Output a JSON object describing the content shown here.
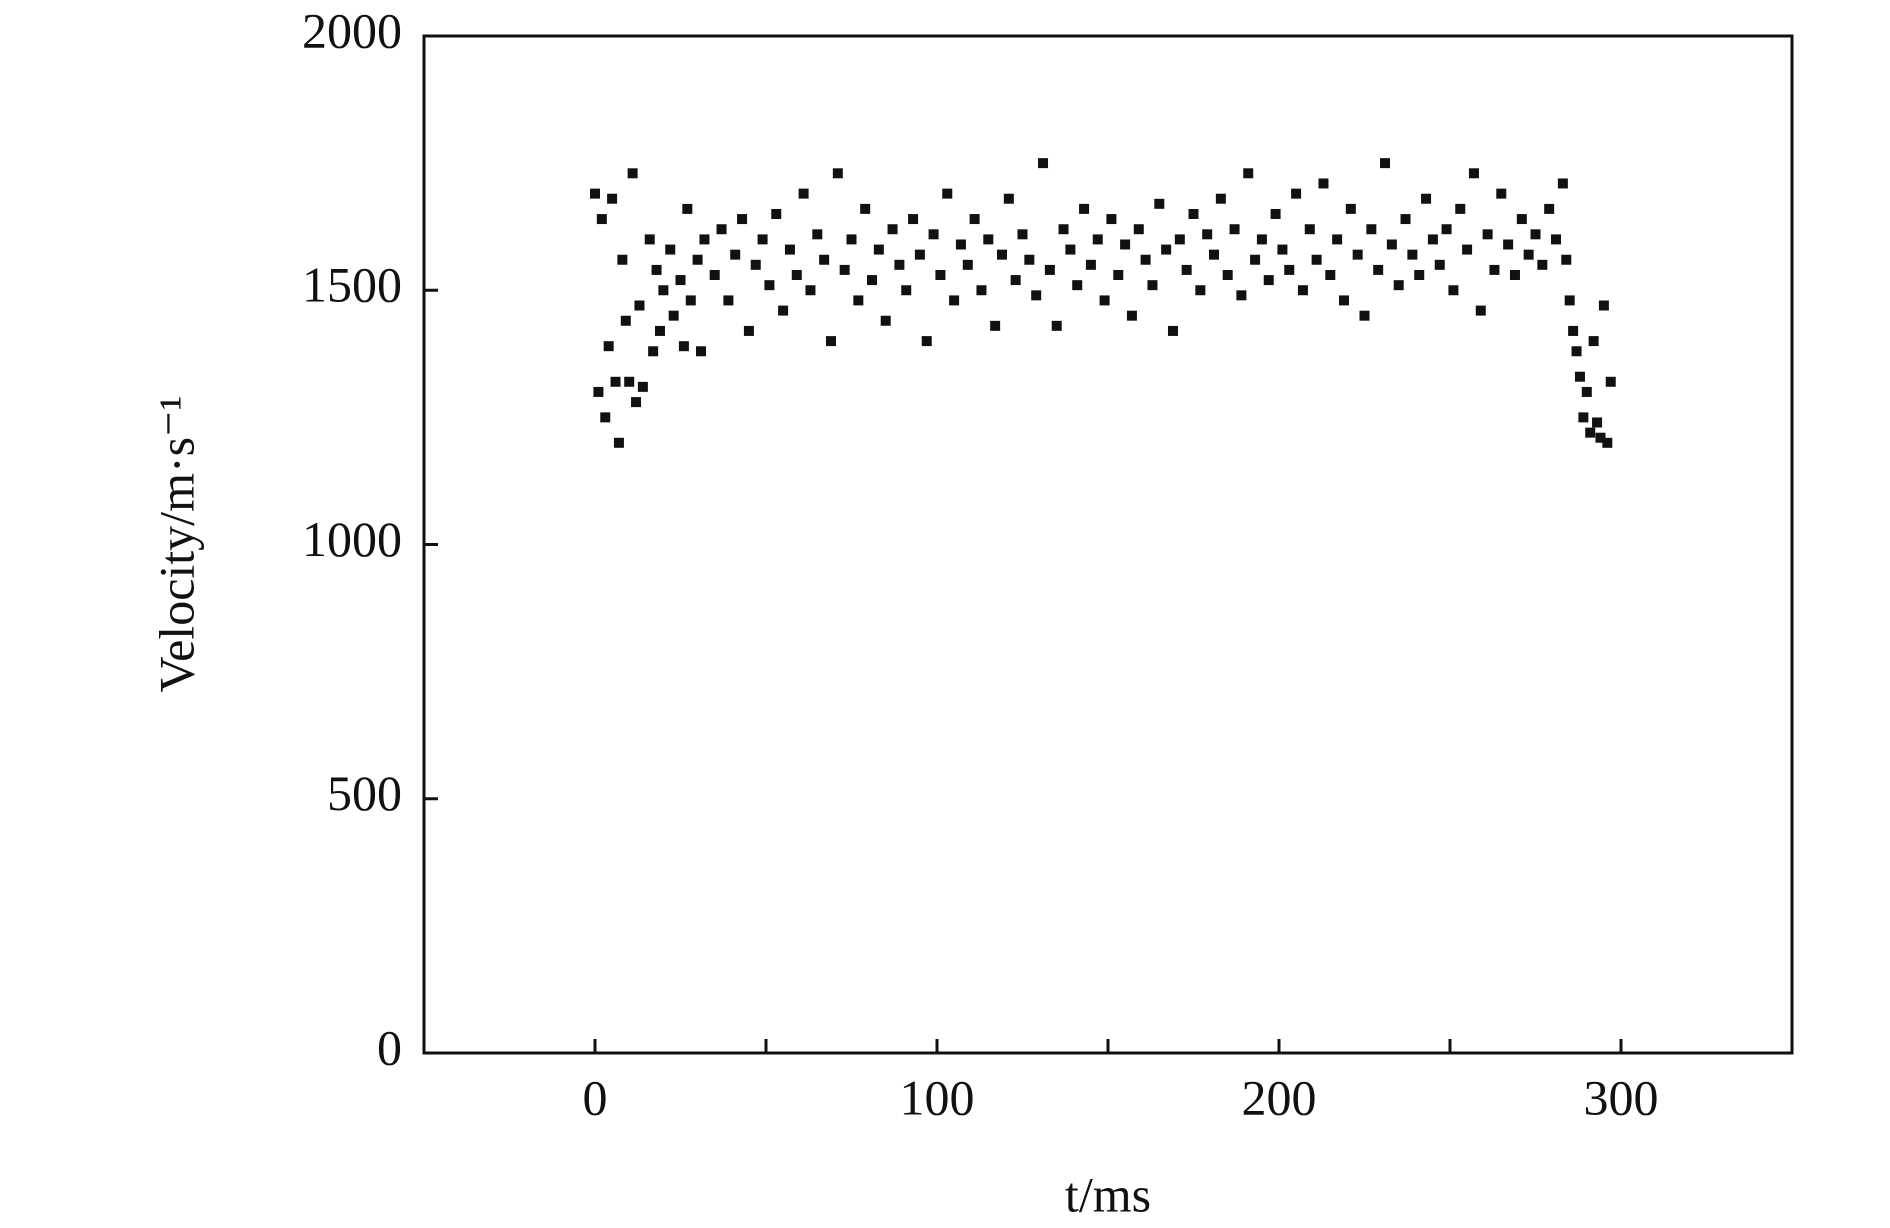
{
  "chart_data": {
    "type": "scatter",
    "x_label": "t/ms",
    "y_label": "Velocity/m·s⁻¹",
    "xlim": [
      -50,
      350
    ],
    "xticks": [
      0,
      100,
      200,
      300
    ],
    "xminorticks": [
      50,
      150,
      250
    ],
    "ylim": [
      0,
      2000
    ],
    "yticks": [
      0,
      500,
      1000,
      1500,
      2000
    ],
    "color": "#111111",
    "marker": "square",
    "x": [
      0,
      1,
      2,
      3,
      4,
      5,
      6,
      7,
      8,
      9,
      10,
      11,
      12,
      13,
      14,
      16,
      17,
      18,
      19,
      20,
      22,
      23,
      25,
      26,
      27,
      28,
      30,
      31,
      32,
      35,
      37,
      39,
      41,
      43,
      45,
      47,
      49,
      51,
      53,
      55,
      57,
      59,
      61,
      63,
      65,
      67,
      69,
      71,
      73,
      75,
      77,
      79,
      81,
      83,
      85,
      87,
      89,
      91,
      93,
      95,
      97,
      99,
      101,
      103,
      105,
      107,
      109,
      111,
      113,
      115,
      117,
      119,
      121,
      123,
      125,
      127,
      129,
      131,
      133,
      135,
      137,
      139,
      141,
      143,
      145,
      147,
      149,
      151,
      153,
      155,
      157,
      159,
      161,
      163,
      165,
      167,
      169,
      171,
      173,
      175,
      177,
      179,
      181,
      183,
      185,
      187,
      189,
      191,
      193,
      195,
      197,
      199,
      201,
      203,
      205,
      207,
      209,
      211,
      213,
      215,
      217,
      219,
      221,
      223,
      225,
      227,
      229,
      231,
      233,
      235,
      237,
      239,
      241,
      243,
      245,
      247,
      249,
      251,
      253,
      255,
      257,
      259,
      261,
      263,
      265,
      267,
      269,
      271,
      273,
      275,
      277,
      279,
      281,
      283,
      284,
      285,
      286,
      287,
      288,
      289,
      290,
      291,
      292,
      293,
      294,
      295,
      296,
      297
    ],
    "values": [
      1690,
      1300,
      1640,
      1250,
      1390,
      1680,
      1320,
      1200,
      1560,
      1440,
      1320,
      1730,
      1280,
      1470,
      1310,
      1600,
      1380,
      1540,
      1420,
      1500,
      1580,
      1450,
      1520,
      1390,
      1660,
      1480,
      1560,
      1380,
      1600,
      1530,
      1620,
      1480,
      1570,
      1640,
      1420,
      1550,
      1600,
      1510,
      1650,
      1460,
      1580,
      1530,
      1690,
      1500,
      1610,
      1560,
      1400,
      1730,
      1540,
      1600,
      1480,
      1660,
      1520,
      1580,
      1440,
      1620,
      1550,
      1500,
      1640,
      1570,
      1400,
      1610,
      1530,
      1690,
      1480,
      1590,
      1550,
      1640,
      1500,
      1600,
      1430,
      1570,
      1680,
      1520,
      1610,
      1560,
      1490,
      1750,
      1540,
      1430,
      1620,
      1580,
      1510,
      1660,
      1550,
      1600,
      1480,
      1640,
      1530,
      1590,
      1450,
      1620,
      1560,
      1510,
      1670,
      1580,
      1420,
      1600,
      1540,
      1650,
      1500,
      1610,
      1570,
      1680,
      1530,
      1620,
      1490,
      1730,
      1560,
      1600,
      1520,
      1650,
      1580,
      1540,
      1690,
      1500,
      1620,
      1560,
      1710,
      1530,
      1600,
      1480,
      1660,
      1570,
      1450,
      1620,
      1540,
      1750,
      1590,
      1510,
      1640,
      1570,
      1530,
      1680,
      1600,
      1550,
      1620,
      1500,
      1660,
      1580,
      1730,
      1460,
      1610,
      1540,
      1690,
      1590,
      1530,
      1640,
      1570,
      1610,
      1550,
      1660,
      1600,
      1710,
      1560,
      1480,
      1420,
      1380,
      1330,
      1250,
      1300,
      1220,
      1400,
      1240,
      1210,
      1470,
      1200,
      1320
    ]
  }
}
